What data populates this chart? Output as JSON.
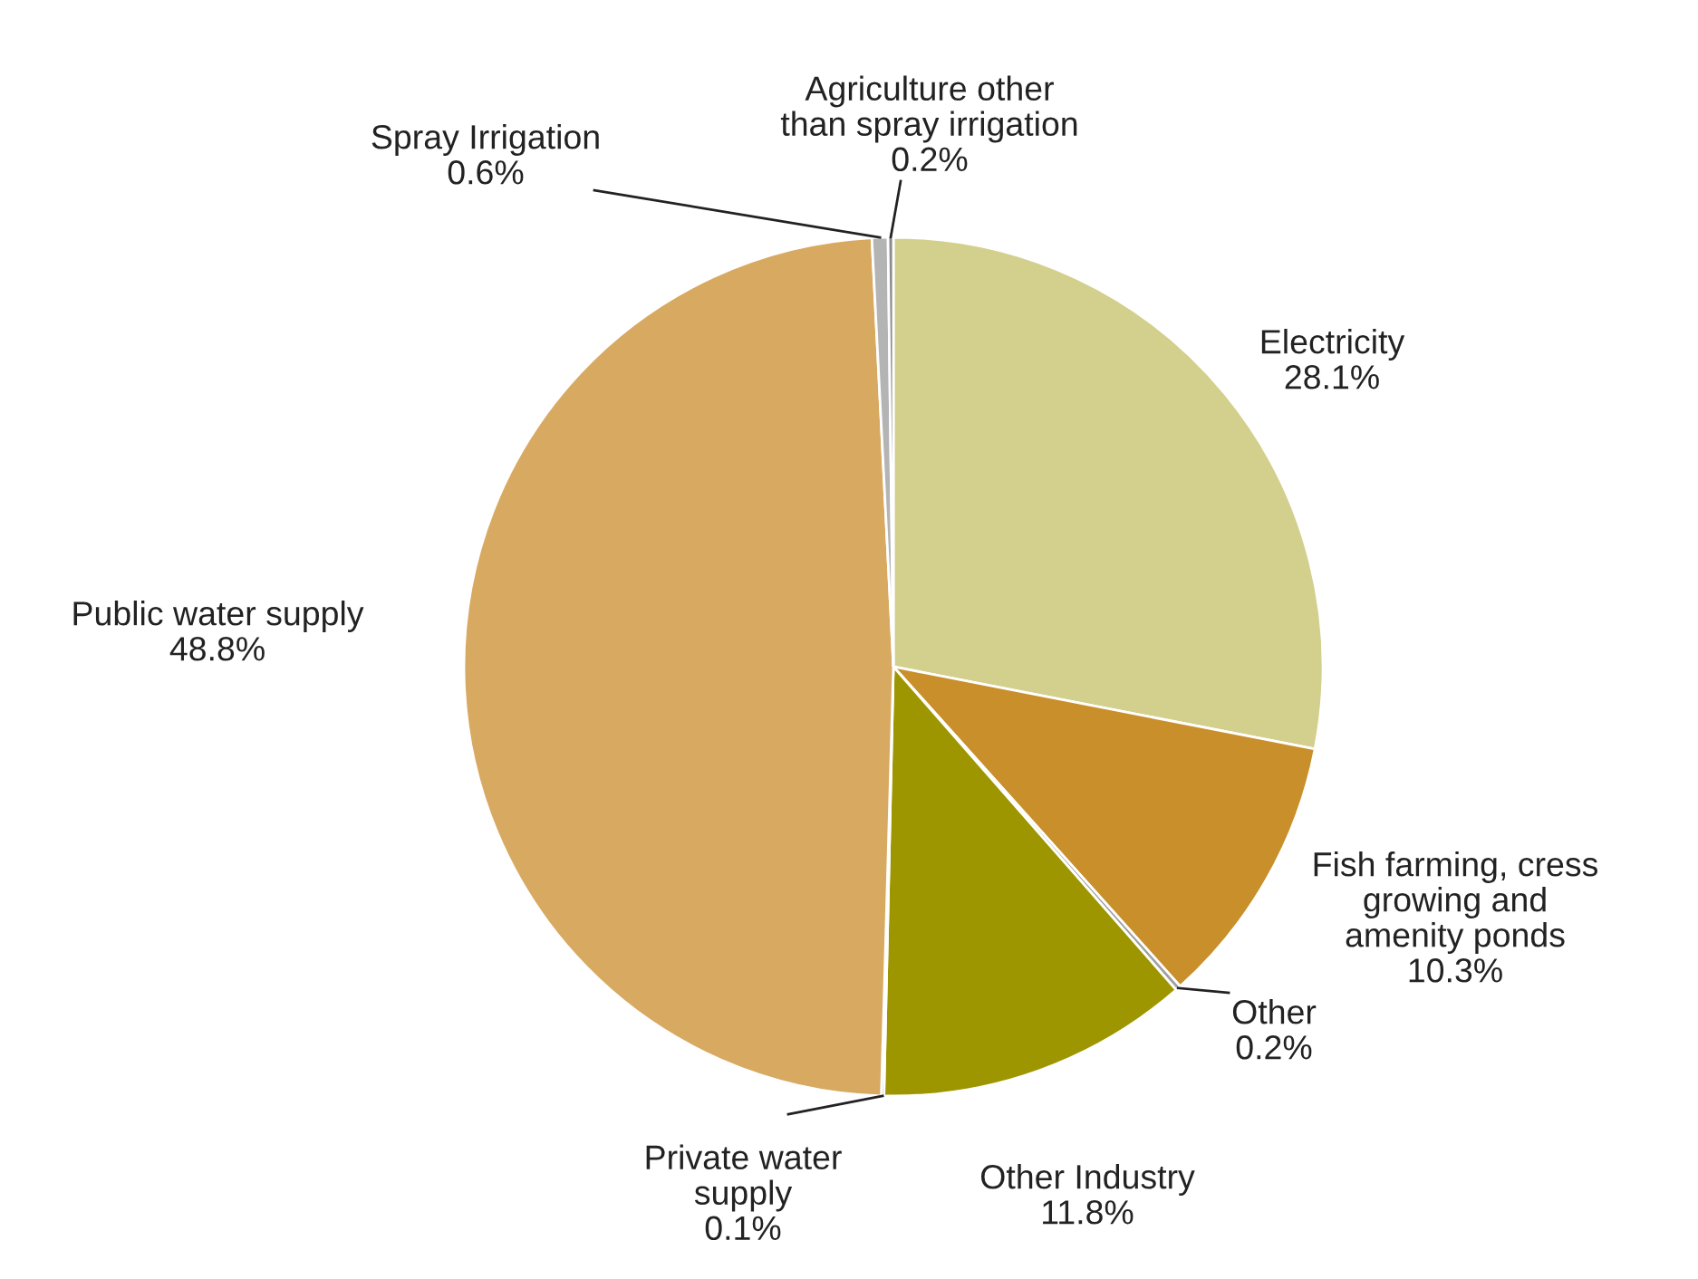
{
  "chart_data": {
    "type": "pie",
    "categories": [
      "Electricity",
      "Fish farming, cress\ngrowing and\namenity ponds",
      "Other",
      "Other Industry",
      "Private water\nsupply",
      "Public water supply",
      "Spray Irrigation",
      "Agriculture other\nthan spray irrigation"
    ],
    "values": [
      28.1,
      10.3,
      0.2,
      11.8,
      0.1,
      48.8,
      0.6,
      0.2
    ],
    "value_labels": [
      "28.1%",
      "10.3%",
      "0.2%",
      "11.8%",
      "0.1%",
      "48.8%",
      "0.6%",
      "0.2%"
    ],
    "colors": [
      "#d3cf8c",
      "#c98f2a",
      "#a0a0a0",
      "#9e9600",
      "#3a3a3a",
      "#d8a961",
      "#b4b4b4",
      "#8c8c8c"
    ]
  }
}
